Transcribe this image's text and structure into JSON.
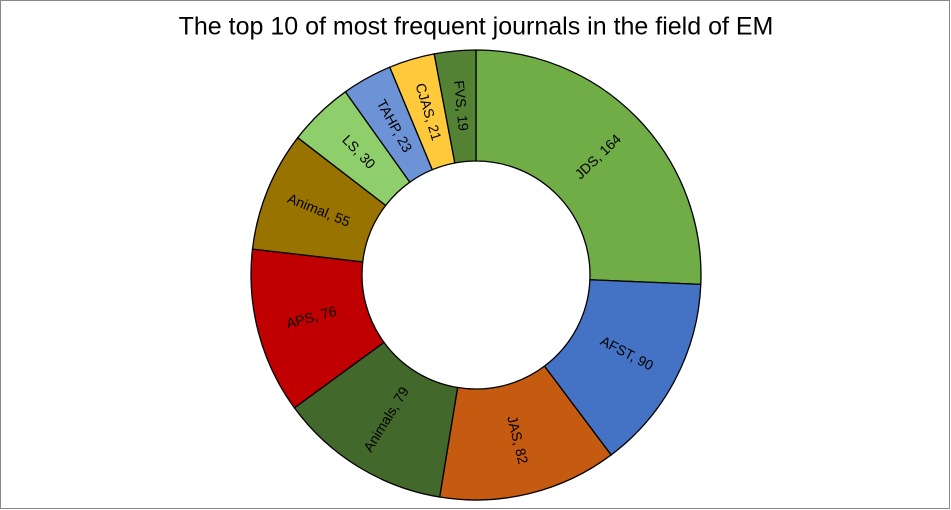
{
  "chart_data": {
    "type": "donut",
    "title": "The top 10 of most frequent journals in the field of EM",
    "values": [
      164,
      90,
      82,
      79,
      76,
      55,
      30,
      23,
      21,
      19
    ],
    "value_labels": [
      "JDS, 164",
      "AFST, 90",
      "JAS, 82",
      "Animals, 79",
      "APS, 76",
      "Animal, 55",
      "LS, 30",
      "TAHP, 23",
      "CJAS, 21",
      "FVS, 19"
    ],
    "colors": [
      "#70ad47",
      "#4472c4",
      "#c55a11",
      "#43682b",
      "#c00000",
      "#997300",
      "#8fcf6b",
      "#6b93d6",
      "#ffc93c",
      "#548235"
    ]
  }
}
